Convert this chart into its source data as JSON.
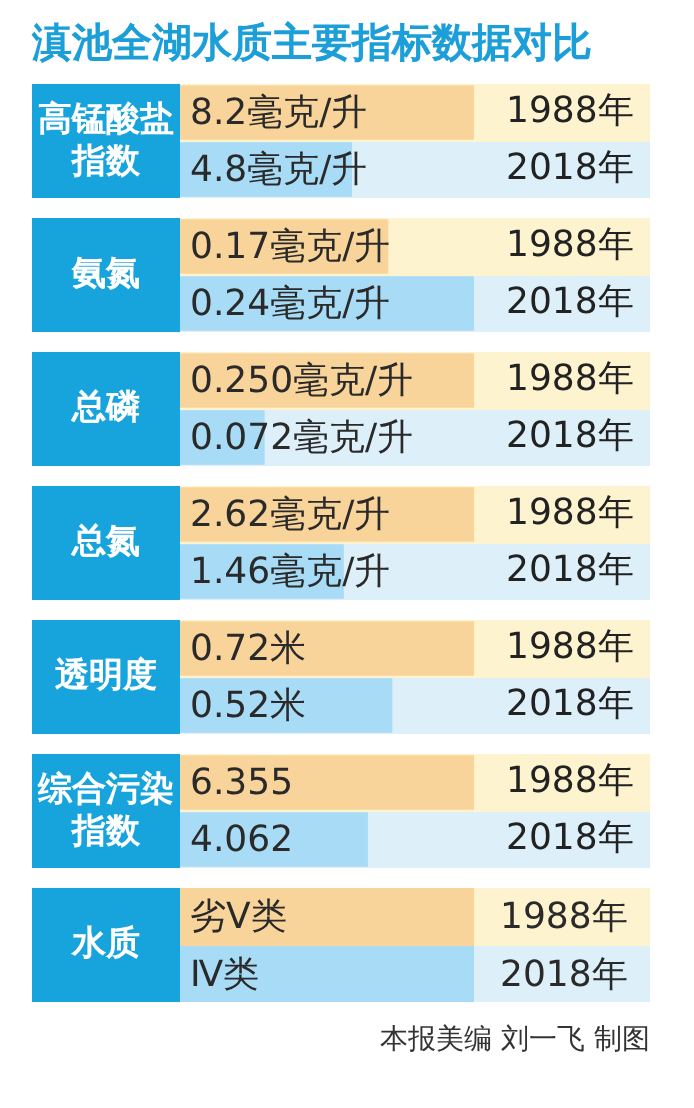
{
  "chart_data": [
    {
      "type": "bar",
      "orientation": "horizontal",
      "title": "滇池全湖水质主要指标数据对比",
      "ylabel": "高锰酸盐指数",
      "categories": [
        "1988年",
        "2018年"
      ],
      "values": [
        8.2,
        4.8
      ],
      "colors": [
        "#f8d49b",
        "#a8dbf5"
      ],
      "value_labels": [
        "8.2毫克/升",
        "4.8毫克/升"
      ],
      "tick_labels": "y",
      "grid": false
    },
    {
      "type": "bar",
      "orientation": "horizontal",
      "ylabel": "氨氮",
      "categories": [
        "1988年",
        "2018年"
      ],
      "values": [
        0.17,
        0.24
      ],
      "colors": [
        "#f8d49b",
        "#a8dbf5"
      ],
      "value_labels": [
        "0.17毫克/升",
        "0.24毫克/升"
      ],
      "tick_labels": "y",
      "grid": false
    },
    {
      "type": "bar",
      "orientation": "horizontal",
      "ylabel": "总磷",
      "categories": [
        "1988年",
        "2018年"
      ],
      "values": [
        0.25,
        0.072
      ],
      "colors": [
        "#f8d49b",
        "#a8dbf5"
      ],
      "value_labels": [
        "0.250毫克/升",
        "0.072毫克/升"
      ],
      "tick_labels": "y",
      "grid": false
    },
    {
      "type": "bar",
      "orientation": "horizontal",
      "ylabel": "总氮",
      "categories": [
        "1988年",
        "2018年"
      ],
      "values": [
        2.62,
        1.46
      ],
      "colors": [
        "#f8d49b",
        "#a8dbf5"
      ],
      "value_labels": [
        "2.62毫克/升",
        "1.46毫克/升"
      ],
      "tick_labels": "y",
      "grid": false
    },
    {
      "type": "bar",
      "orientation": "horizontal",
      "ylabel": "透明度",
      "categories": [
        "1988年",
        "2018年"
      ],
      "values": [
        0.72,
        0.52
      ],
      "colors": [
        "#f8d49b",
        "#a8dbf5"
      ],
      "value_labels": [
        "0.72米",
        "0.52米"
      ],
      "tick_labels": "y",
      "grid": false
    },
    {
      "type": "bar",
      "orientation": "horizontal",
      "ylabel": "综合污染指数",
      "categories": [
        "1988年",
        "2018年"
      ],
      "values": [
        6.355,
        4.062
      ],
      "colors": [
        "#f8d49b",
        "#a8dbf5"
      ],
      "data_labels": true,
      "tick_labels": "y",
      "grid": false
    },
    {
      "type": "other",
      "ylabel": "水质",
      "categories": [
        "1988年",
        "2018年"
      ],
      "annotations": [
        "劣Ⅴ类",
        "Ⅳ类",
        "本报美编 刘一飞 制图"
      ]
    }
  ]
}
